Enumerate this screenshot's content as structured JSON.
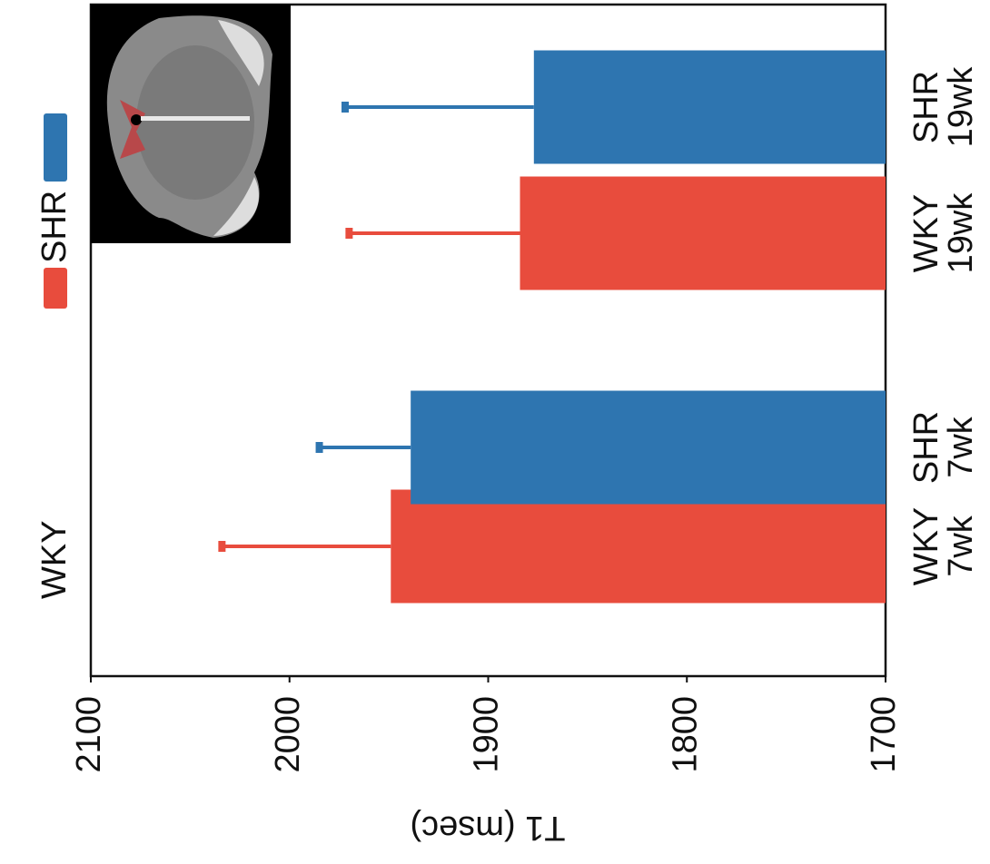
{
  "chart_data": {
    "type": "bar",
    "y_label": "T1 (msec)",
    "categories": [
      [
        "WKY",
        "7wk"
      ],
      [
        "SHR",
        "7wk"
      ],
      [
        "WKY",
        "19wk"
      ],
      [
        "SHR",
        "19wk"
      ]
    ],
    "series": [
      {
        "name": "WKY",
        "color": "#e84c3d",
        "values": [
          1949,
          null,
          1884,
          null
        ],
        "errors": [
          85,
          null,
          86,
          null
        ]
      },
      {
        "name": "SHR",
        "color": "#2e75b0",
        "values": [
          null,
          1939,
          null,
          1877
        ],
        "errors": [
          null,
          46,
          null,
          95
        ]
      }
    ],
    "ylim": [
      1700,
      2100
    ],
    "yticks": [
      1700,
      1800,
      1900,
      2000,
      2100
    ]
  }
}
